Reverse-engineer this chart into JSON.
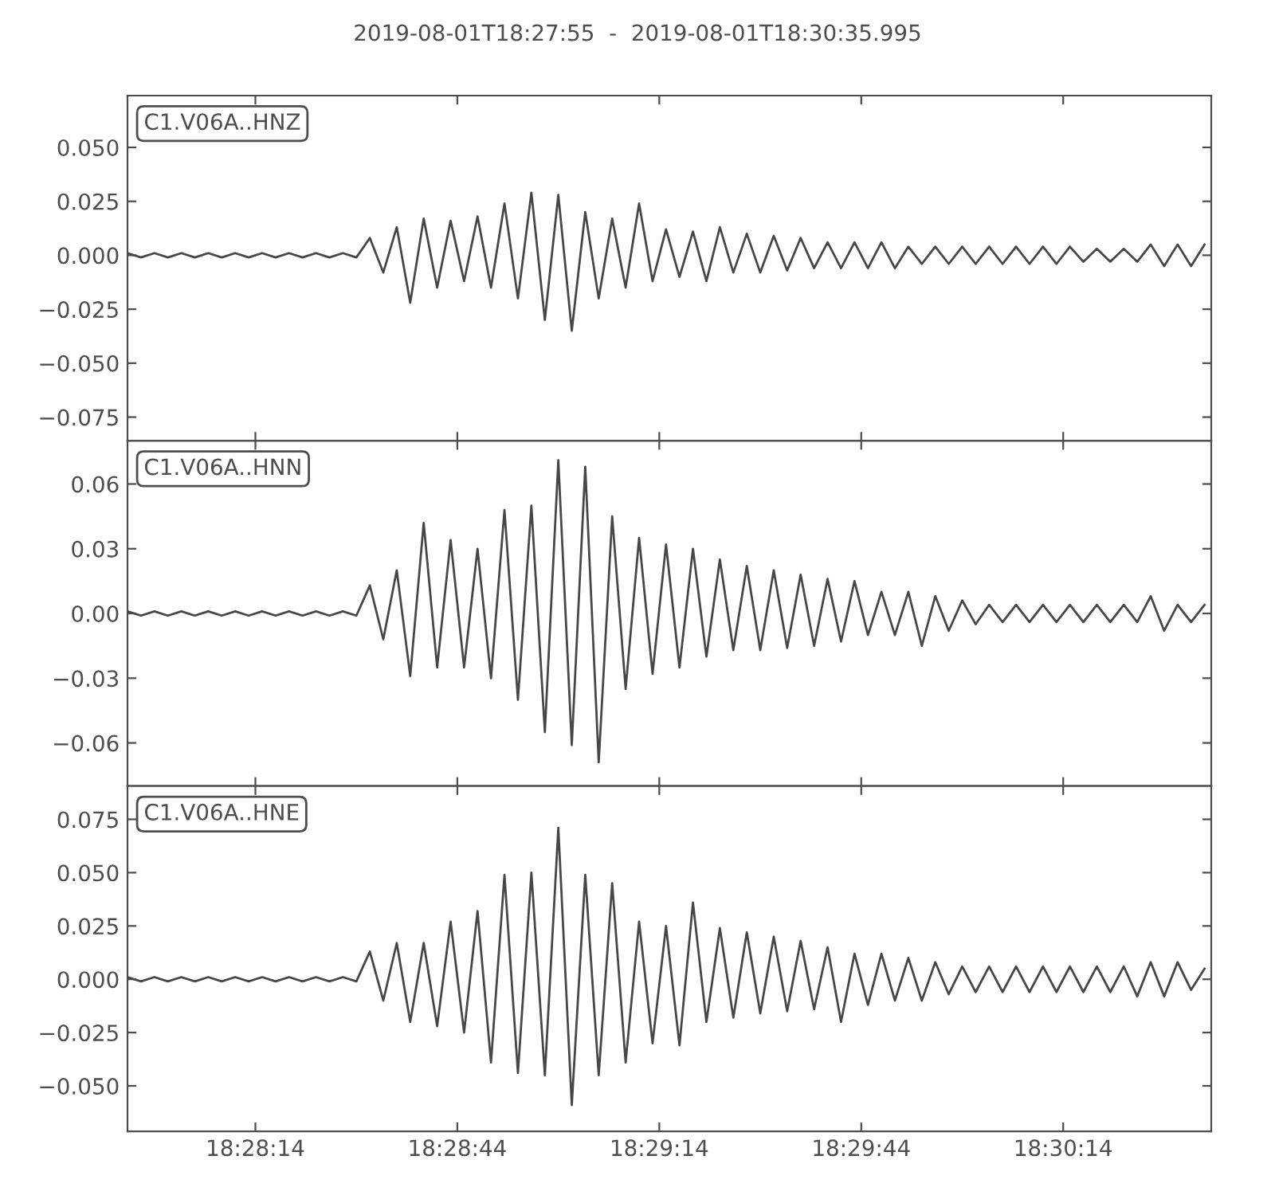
{
  "chart_data": [
    {
      "type": "line",
      "title": "2019-08-01T18:27:55  -  2019-08-01T18:30:35.995",
      "annotations": [
        "C1.V06A..HNZ"
      ],
      "tick_labels": "y",
      "grid": false,
      "marker": "none",
      "line_style": "solid",
      "xlim": [
        "2019-08-01T18:27:55",
        "2019-08-01T18:30:35.995"
      ],
      "xticks": [
        {
          "value": "2019-08-01T18:28:14",
          "label": null
        },
        {
          "value": "2019-08-01T18:28:44",
          "label": null
        },
        {
          "value": "2019-08-01T18:29:14",
          "label": null
        },
        {
          "value": "2019-08-01T18:29:44",
          "label": null
        },
        {
          "value": "2019-08-01T18:30:14",
          "label": null
        }
      ],
      "ylim": [
        -0.086,
        0.074
      ],
      "yticks": [
        {
          "value": -0.075,
          "label": "−0.075"
        },
        {
          "value": -0.05,
          "label": "−0.050"
        },
        {
          "value": -0.025,
          "label": "−0.025"
        },
        {
          "value": 0,
          "label": "0.000"
        },
        {
          "value": 0.025,
          "label": "0.025"
        },
        {
          "value": 0.05,
          "label": "0.050"
        }
      ],
      "x": [
        "2019-08-01T18:27:55",
        "2019-08-01T18:27:57",
        "2019-08-01T18:27:59",
        "2019-08-01T18:28:01",
        "2019-08-01T18:28:03",
        "2019-08-01T18:28:05",
        "2019-08-01T18:28:07",
        "2019-08-01T18:28:09",
        "2019-08-01T18:28:11",
        "2019-08-01T18:28:13",
        "2019-08-01T18:28:15",
        "2019-08-01T18:28:17",
        "2019-08-01T18:28:19",
        "2019-08-01T18:28:21",
        "2019-08-01T18:28:23",
        "2019-08-01T18:28:25",
        "2019-08-01T18:28:27",
        "2019-08-01T18:28:29",
        "2019-08-01T18:28:31",
        "2019-08-01T18:28:33",
        "2019-08-01T18:28:35",
        "2019-08-01T18:28:37",
        "2019-08-01T18:28:39",
        "2019-08-01T18:28:41",
        "2019-08-01T18:28:43",
        "2019-08-01T18:28:45",
        "2019-08-01T18:28:47",
        "2019-08-01T18:28:49",
        "2019-08-01T18:28:51",
        "2019-08-01T18:28:53",
        "2019-08-01T18:28:55",
        "2019-08-01T18:28:57",
        "2019-08-01T18:28:59",
        "2019-08-01T18:29:01",
        "2019-08-01T18:29:03",
        "2019-08-01T18:29:05",
        "2019-08-01T18:29:07",
        "2019-08-01T18:29:09",
        "2019-08-01T18:29:11",
        "2019-08-01T18:29:13",
        "2019-08-01T18:29:15",
        "2019-08-01T18:29:17",
        "2019-08-01T18:29:19",
        "2019-08-01T18:29:21",
        "2019-08-01T18:29:23",
        "2019-08-01T18:29:25",
        "2019-08-01T18:29:27",
        "2019-08-01T18:29:29",
        "2019-08-01T18:29:31",
        "2019-08-01T18:29:33",
        "2019-08-01T18:29:35",
        "2019-08-01T18:29:37",
        "2019-08-01T18:29:39",
        "2019-08-01T18:29:41",
        "2019-08-01T18:29:43",
        "2019-08-01T18:29:45",
        "2019-08-01T18:29:47",
        "2019-08-01T18:29:49",
        "2019-08-01T18:29:51",
        "2019-08-01T18:29:53",
        "2019-08-01T18:29:55",
        "2019-08-01T18:29:57",
        "2019-08-01T18:29:59",
        "2019-08-01T18:30:01",
        "2019-08-01T18:30:03",
        "2019-08-01T18:30:05",
        "2019-08-01T18:30:07",
        "2019-08-01T18:30:09",
        "2019-08-01T18:30:11",
        "2019-08-01T18:30:13",
        "2019-08-01T18:30:15",
        "2019-08-01T18:30:17",
        "2019-08-01T18:30:19",
        "2019-08-01T18:30:21",
        "2019-08-01T18:30:23",
        "2019-08-01T18:30:25",
        "2019-08-01T18:30:27",
        "2019-08-01T18:30:29",
        "2019-08-01T18:30:31",
        "2019-08-01T18:30:33",
        "2019-08-01T18:30:35"
      ],
      "series": [
        {
          "color": "#474747",
          "values": [
            0.001,
            -0.001,
            0.001,
            -0.001,
            0.001,
            -0.001,
            0.001,
            -0.001,
            0.001,
            -0.001,
            0.001,
            -0.001,
            0.001,
            -0.001,
            0.001,
            -0.001,
            0.001,
            -0.001,
            0.008,
            -0.008,
            0.013,
            -0.022,
            0.017,
            -0.015,
            0.016,
            -0.012,
            0.018,
            -0.015,
            0.024,
            -0.02,
            0.029,
            -0.03,
            0.028,
            -0.035,
            0.02,
            -0.02,
            0.017,
            -0.015,
            0.024,
            -0.012,
            0.012,
            -0.01,
            0.011,
            -0.012,
            0.013,
            -0.008,
            0.01,
            -0.008,
            0.009,
            -0.007,
            0.008,
            -0.006,
            0.006,
            -0.006,
            0.006,
            -0.006,
            0.006,
            -0.006,
            0.004,
            -0.004,
            0.004,
            -0.004,
            0.004,
            -0.004,
            0.004,
            -0.004,
            0.004,
            -0.004,
            0.004,
            -0.004,
            0.004,
            -0.003,
            0.003,
            -0.003,
            0.003,
            -0.003,
            0.005,
            -0.005,
            0.005,
            -0.005,
            0.005
          ]
        }
      ]
    },
    {
      "type": "line",
      "annotations": [
        "C1.V06A..HNN"
      ],
      "tick_labels": "y",
      "grid": false,
      "marker": "none",
      "line_style": "solid",
      "xlim": [
        "2019-08-01T18:27:55",
        "2019-08-01T18:30:35.995"
      ],
      "xticks": [
        {
          "value": "2019-08-01T18:28:14",
          "label": null
        },
        {
          "value": "2019-08-01T18:28:44",
          "label": null
        },
        {
          "value": "2019-08-01T18:29:14",
          "label": null
        },
        {
          "value": "2019-08-01T18:29:44",
          "label": null
        },
        {
          "value": "2019-08-01T18:30:14",
          "label": null
        }
      ],
      "ylim": [
        -0.08,
        0.08
      ],
      "yticks": [
        {
          "value": -0.06,
          "label": "−0.06"
        },
        {
          "value": -0.03,
          "label": "−0.03"
        },
        {
          "value": 0,
          "label": "0.00"
        },
        {
          "value": 0.03,
          "label": "0.03"
        },
        {
          "value": 0.06,
          "label": "0.06"
        }
      ],
      "x": [
        "2019-08-01T18:27:55",
        "2019-08-01T18:27:57",
        "2019-08-01T18:27:59",
        "2019-08-01T18:28:01",
        "2019-08-01T18:28:03",
        "2019-08-01T18:28:05",
        "2019-08-01T18:28:07",
        "2019-08-01T18:28:09",
        "2019-08-01T18:28:11",
        "2019-08-01T18:28:13",
        "2019-08-01T18:28:15",
        "2019-08-01T18:28:17",
        "2019-08-01T18:28:19",
        "2019-08-01T18:28:21",
        "2019-08-01T18:28:23",
        "2019-08-01T18:28:25",
        "2019-08-01T18:28:27",
        "2019-08-01T18:28:29",
        "2019-08-01T18:28:31",
        "2019-08-01T18:28:33",
        "2019-08-01T18:28:35",
        "2019-08-01T18:28:37",
        "2019-08-01T18:28:39",
        "2019-08-01T18:28:41",
        "2019-08-01T18:28:43",
        "2019-08-01T18:28:45",
        "2019-08-01T18:28:47",
        "2019-08-01T18:28:49",
        "2019-08-01T18:28:51",
        "2019-08-01T18:28:53",
        "2019-08-01T18:28:55",
        "2019-08-01T18:28:57",
        "2019-08-01T18:28:59",
        "2019-08-01T18:29:01",
        "2019-08-01T18:29:03",
        "2019-08-01T18:29:05",
        "2019-08-01T18:29:07",
        "2019-08-01T18:29:09",
        "2019-08-01T18:29:11",
        "2019-08-01T18:29:13",
        "2019-08-01T18:29:15",
        "2019-08-01T18:29:17",
        "2019-08-01T18:29:19",
        "2019-08-01T18:29:21",
        "2019-08-01T18:29:23",
        "2019-08-01T18:29:25",
        "2019-08-01T18:29:27",
        "2019-08-01T18:29:29",
        "2019-08-01T18:29:31",
        "2019-08-01T18:29:33",
        "2019-08-01T18:29:35",
        "2019-08-01T18:29:37",
        "2019-08-01T18:29:39",
        "2019-08-01T18:29:41",
        "2019-08-01T18:29:43",
        "2019-08-01T18:29:45",
        "2019-08-01T18:29:47",
        "2019-08-01T18:29:49",
        "2019-08-01T18:29:51",
        "2019-08-01T18:29:53",
        "2019-08-01T18:29:55",
        "2019-08-01T18:29:57",
        "2019-08-01T18:29:59",
        "2019-08-01T18:30:01",
        "2019-08-01T18:30:03",
        "2019-08-01T18:30:05",
        "2019-08-01T18:30:07",
        "2019-08-01T18:30:09",
        "2019-08-01T18:30:11",
        "2019-08-01T18:30:13",
        "2019-08-01T18:30:15",
        "2019-08-01T18:30:17",
        "2019-08-01T18:30:19",
        "2019-08-01T18:30:21",
        "2019-08-01T18:30:23",
        "2019-08-01T18:30:25",
        "2019-08-01T18:30:27",
        "2019-08-01T18:30:29",
        "2019-08-01T18:30:31",
        "2019-08-01T18:30:33",
        "2019-08-01T18:30:35"
      ],
      "series": [
        {
          "color": "#474747",
          "values": [
            0.001,
            -0.001,
            0.001,
            -0.001,
            0.001,
            -0.001,
            0.001,
            -0.001,
            0.001,
            -0.001,
            0.001,
            -0.001,
            0.001,
            -0.001,
            0.001,
            -0.001,
            0.001,
            -0.001,
            0.013,
            -0.012,
            0.02,
            -0.029,
            0.042,
            -0.025,
            0.034,
            -0.025,
            0.03,
            -0.03,
            0.048,
            -0.04,
            0.05,
            -0.055,
            0.071,
            -0.061,
            0.068,
            -0.069,
            0.045,
            -0.035,
            0.035,
            -0.028,
            0.032,
            -0.025,
            0.03,
            -0.02,
            0.025,
            -0.017,
            0.022,
            -0.017,
            0.02,
            -0.016,
            0.018,
            -0.015,
            0.016,
            -0.013,
            0.015,
            -0.01,
            0.01,
            -0.01,
            0.01,
            -0.015,
            0.008,
            -0.008,
            0.006,
            -0.005,
            0.004,
            -0.004,
            0.004,
            -0.004,
            0.004,
            -0.004,
            0.004,
            -0.004,
            0.004,
            -0.004,
            0.004,
            -0.004,
            0.008,
            -0.008,
            0.004,
            -0.004,
            0.004
          ]
        }
      ]
    },
    {
      "type": "line",
      "annotations": [
        "C1.V06A..HNE"
      ],
      "grid": false,
      "marker": "none",
      "line_style": "solid",
      "xlim": [
        "2019-08-01T18:27:55",
        "2019-08-01T18:30:35.995"
      ],
      "xticks": [
        {
          "value": "2019-08-01T18:28:14",
          "label": "18:28:14"
        },
        {
          "value": "2019-08-01T18:28:44",
          "label": "18:28:44"
        },
        {
          "value": "2019-08-01T18:29:14",
          "label": "18:29:14"
        },
        {
          "value": "2019-08-01T18:29:44",
          "label": "18:29:44"
        },
        {
          "value": "2019-08-01T18:30:14",
          "label": "18:30:14"
        }
      ],
      "ylim": [
        -0.0713,
        0.0906
      ],
      "yticks": [
        {
          "value": -0.05,
          "label": "−0.050"
        },
        {
          "value": -0.025,
          "label": "−0.025"
        },
        {
          "value": 0,
          "label": "0.000"
        },
        {
          "value": 0.025,
          "label": "0.025"
        },
        {
          "value": 0.05,
          "label": "0.050"
        },
        {
          "value": 0.075,
          "label": "0.075"
        }
      ],
      "x": [
        "2019-08-01T18:27:55",
        "2019-08-01T18:27:57",
        "2019-08-01T18:27:59",
        "2019-08-01T18:28:01",
        "2019-08-01T18:28:03",
        "2019-08-01T18:28:05",
        "2019-08-01T18:28:07",
        "2019-08-01T18:28:09",
        "2019-08-01T18:28:11",
        "2019-08-01T18:28:13",
        "2019-08-01T18:28:15",
        "2019-08-01T18:28:17",
        "2019-08-01T18:28:19",
        "2019-08-01T18:28:21",
        "2019-08-01T18:28:23",
        "2019-08-01T18:28:25",
        "2019-08-01T18:28:27",
        "2019-08-01T18:28:29",
        "2019-08-01T18:28:31",
        "2019-08-01T18:28:33",
        "2019-08-01T18:28:35",
        "2019-08-01T18:28:37",
        "2019-08-01T18:28:39",
        "2019-08-01T18:28:41",
        "2019-08-01T18:28:43",
        "2019-08-01T18:28:45",
        "2019-08-01T18:28:47",
        "2019-08-01T18:28:49",
        "2019-08-01T18:28:51",
        "2019-08-01T18:28:53",
        "2019-08-01T18:28:55",
        "2019-08-01T18:28:57",
        "2019-08-01T18:28:59",
        "2019-08-01T18:29:01",
        "2019-08-01T18:29:03",
        "2019-08-01T18:29:05",
        "2019-08-01T18:29:07",
        "2019-08-01T18:29:09",
        "2019-08-01T18:29:11",
        "2019-08-01T18:29:13",
        "2019-08-01T18:29:15",
        "2019-08-01T18:29:17",
        "2019-08-01T18:29:19",
        "2019-08-01T18:29:21",
        "2019-08-01T18:29:23",
        "2019-08-01T18:29:25",
        "2019-08-01T18:29:27",
        "2019-08-01T18:29:29",
        "2019-08-01T18:29:31",
        "2019-08-01T18:29:33",
        "2019-08-01T18:29:35",
        "2019-08-01T18:29:37",
        "2019-08-01T18:29:39",
        "2019-08-01T18:29:41",
        "2019-08-01T18:29:43",
        "2019-08-01T18:29:45",
        "2019-08-01T18:29:47",
        "2019-08-01T18:29:49",
        "2019-08-01T18:29:51",
        "2019-08-01T18:29:53",
        "2019-08-01T18:29:55",
        "2019-08-01T18:29:57",
        "2019-08-01T18:29:59",
        "2019-08-01T18:30:01",
        "2019-08-01T18:30:03",
        "2019-08-01T18:30:05",
        "2019-08-01T18:30:07",
        "2019-08-01T18:30:09",
        "2019-08-01T18:30:11",
        "2019-08-01T18:30:13",
        "2019-08-01T18:30:15",
        "2019-08-01T18:30:17",
        "2019-08-01T18:30:19",
        "2019-08-01T18:30:21",
        "2019-08-01T18:30:23",
        "2019-08-01T18:30:25",
        "2019-08-01T18:30:27",
        "2019-08-01T18:30:29",
        "2019-08-01T18:30:31",
        "2019-08-01T18:30:33",
        "2019-08-01T18:30:35"
      ],
      "series": [
        {
          "color": "#474747",
          "values": [
            0.001,
            -0.001,
            0.001,
            -0.001,
            0.001,
            -0.001,
            0.001,
            -0.001,
            0.001,
            -0.001,
            0.001,
            -0.001,
            0.001,
            -0.001,
            0.001,
            -0.001,
            0.001,
            -0.001,
            0.013,
            -0.01,
            0.017,
            -0.02,
            0.017,
            -0.022,
            0.027,
            -0.025,
            0.032,
            -0.039,
            0.049,
            -0.044,
            0.05,
            -0.045,
            0.071,
            -0.059,
            0.049,
            -0.045,
            0.045,
            -0.039,
            0.027,
            -0.03,
            0.025,
            -0.031,
            0.036,
            -0.02,
            0.024,
            -0.018,
            0.022,
            -0.016,
            0.02,
            -0.015,
            0.018,
            -0.014,
            0.015,
            -0.02,
            0.012,
            -0.012,
            0.012,
            -0.01,
            0.01,
            -0.01,
            0.008,
            -0.007,
            0.006,
            -0.006,
            0.006,
            -0.006,
            0.006,
            -0.006,
            0.006,
            -0.006,
            0.006,
            -0.006,
            0.006,
            -0.006,
            0.006,
            -0.008,
            0.008,
            -0.008,
            0.008,
            -0.005,
            0.005
          ]
        }
      ]
    }
  ]
}
